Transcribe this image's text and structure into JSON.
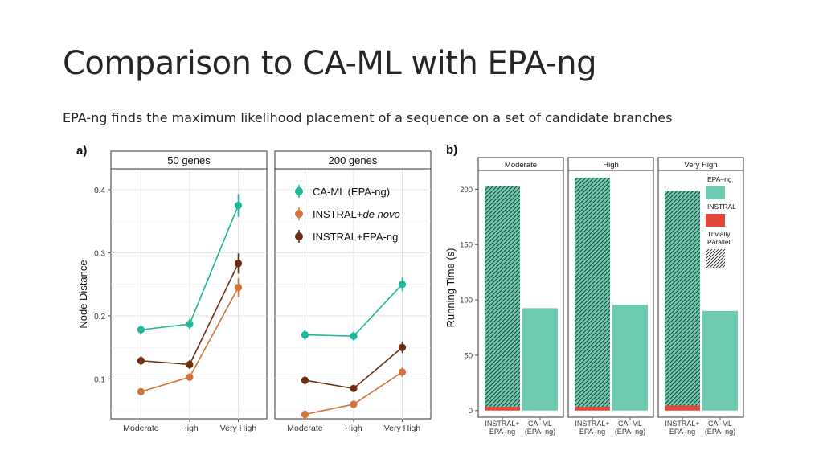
{
  "slide": {
    "title": "Comparison to CA-ML with EPA-ng",
    "subtitle": "EPA-ng finds the maximum likelihood placement of a sequence on a set of candidate branches"
  },
  "chart_data": [
    {
      "type": "line",
      "panel_label": "a)",
      "ylabel": "Node Distance",
      "xlabel": "",
      "ylim": [
        0.037,
        0.433
      ],
      "yticks": [
        0.1,
        0.2,
        0.3,
        0.4
      ],
      "ytick_labels": [
        "0.1",
        "0.2",
        "0.3",
        "0.4"
      ],
      "categories": [
        "Moderate",
        "High",
        "Very High"
      ],
      "facets": [
        {
          "title": "50 genes",
          "series": [
            {
              "name": "CA-ML (EPA-ng)",
              "values": [
                0.178,
                0.187,
                0.375
              ],
              "err": [
                0.008,
                0.008,
                0.018
              ]
            },
            {
              "name": "INSTRAL+de novo",
              "values": [
                0.08,
                0.103,
                0.245
              ],
              "err": [
                0.005,
                0.006,
                0.015
              ]
            },
            {
              "name": "INSTRAL+EPA-ng",
              "values": [
                0.129,
                0.123,
                0.283
              ],
              "err": [
                0.007,
                0.007,
                0.016
              ]
            }
          ]
        },
        {
          "title": "200 genes",
          "series": [
            {
              "name": "CA-ML (EPA-ng)",
              "values": [
                0.17,
                0.168,
                0.25
              ],
              "err": [
                0.008,
                0.007,
                0.011
              ]
            },
            {
              "name": "INSTRAL+de novo",
              "values": [
                0.044,
                0.06,
                0.111
              ],
              "err": [
                0.004,
                0.004,
                0.008
              ]
            },
            {
              "name": "INSTRAL+EPA-ng",
              "values": [
                0.098,
                0.085,
                0.15
              ],
              "err": [
                0.006,
                0.005,
                0.009
              ]
            }
          ]
        }
      ],
      "legend": {
        "position": "top-right",
        "entries": [
          {
            "name": "CA-ML (EPA-ng)",
            "base": "CA-ML (EPA-ng)",
            "italic": "",
            "color": "#1db79a"
          },
          {
            "name": "INSTRAL+de novo",
            "base": "INSTRAL+",
            "italic": "de novo",
            "color": "#d4733b"
          },
          {
            "name": "INSTRAL+EPA-ng",
            "base": "INSTRAL+EPA-ng",
            "italic": "",
            "color": "#6b2f12"
          }
        ]
      },
      "grid": true
    },
    {
      "type": "bar",
      "panel_label": "b)",
      "ylabel": "Running Time (s)",
      "xlabel": "",
      "ylim": [
        -6,
        217
      ],
      "yticks": [
        0,
        50,
        100,
        150,
        200
      ],
      "ytick_labels": [
        "0",
        "50",
        "100",
        "150",
        "200"
      ],
      "categories": [
        "INSTRAL+ EPA–ng",
        "CA–ML (EPA–ng)"
      ],
      "category_lines": [
        [
          "INSTRAL+",
          "EPA–ng"
        ],
        [
          "CA–ML",
          "(EPA–ng)"
        ]
      ],
      "facets": [
        {
          "title": "Moderate",
          "values": [
            202.5,
            92.5
          ],
          "instral_part": [
            3.5,
            0
          ]
        },
        {
          "title": "High",
          "values": [
            210.5,
            95.5
          ],
          "instral_part": [
            3.5,
            0
          ]
        },
        {
          "title": "Very High",
          "values": [
            198.5,
            90
          ],
          "instral_part": [
            4.5,
            0
          ]
        }
      ],
      "legend": {
        "position": "right",
        "entries": [
          {
            "name": "EPA–ng",
            "lines": [
              "EPA–ng"
            ],
            "color": "#6ccbb0",
            "pattern": "solid"
          },
          {
            "name": "INSTRAL",
            "lines": [
              "INSTRAL"
            ],
            "color": "#e3473b",
            "pattern": "solid"
          },
          {
            "name": "Trivially Parallel",
            "lines": [
              "Trivially",
              "Parallel"
            ],
            "color": "#222222",
            "pattern": "hatched"
          }
        ]
      },
      "grid": false
    }
  ]
}
